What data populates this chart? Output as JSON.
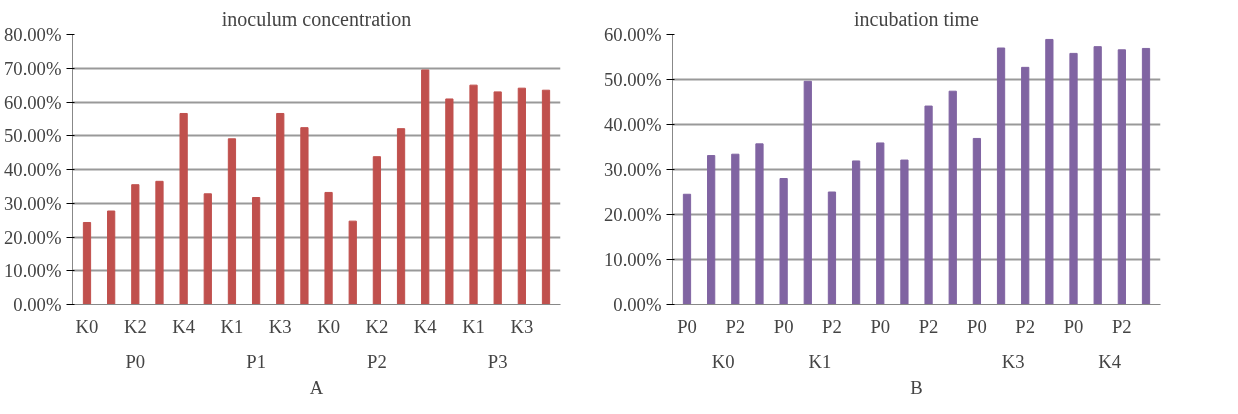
{
  "chart_data": [
    {
      "type": "bar",
      "title": "inoculum concentration",
      "categories": [
        "K0",
        null,
        "K2",
        null,
        "K4",
        null,
        "K1",
        null,
        "K3",
        null,
        "K0",
        null,
        "K2",
        null,
        "K4",
        null,
        "K1",
        null,
        "K3",
        null
      ],
      "values": [
        0.243,
        0.277,
        0.355,
        0.365,
        0.566,
        0.328,
        0.491,
        0.317,
        0.566,
        0.524,
        0.332,
        0.247,
        0.438,
        0.521,
        0.695,
        0.609,
        0.65,
        0.63,
        0.641,
        0.635
      ],
      "color": "#c0504d",
      "ylim": [
        0,
        0.8
      ],
      "yticks": [
        {
          "value": 0,
          "label": "0.00%"
        },
        {
          "value": 0.1,
          "label": "10.00%"
        },
        {
          "value": 0.2,
          "label": "20.00%"
        },
        {
          "value": 0.3,
          "label": "30.00%"
        },
        {
          "value": 0.4,
          "label": "40.00%"
        },
        {
          "value": 0.5,
          "label": "50.00%"
        },
        {
          "value": 0.6,
          "label": "60.00%"
        },
        {
          "value": 0.7,
          "label": "70.00%"
        },
        {
          "value": 0.8,
          "label": "80.00%"
        }
      ],
      "grid": "y",
      "annotations": [
        "P0",
        "P1",
        "P2",
        "P3",
        "A"
      ]
    },
    {
      "type": "bar",
      "title": "incubation time",
      "categories": [
        "P0",
        null,
        "P2",
        null,
        "P0",
        null,
        "P2",
        null,
        "P0",
        null,
        "P2",
        null,
        "P0",
        null,
        "P2",
        null,
        "P0",
        null,
        "P2",
        null
      ],
      "values": [
        0.245,
        0.331,
        0.334,
        0.357,
        0.28,
        0.496,
        0.25,
        0.319,
        0.359,
        0.321,
        0.441,
        0.474,
        0.369,
        0.57,
        0.527,
        0.589,
        0.558,
        0.573,
        0.566,
        0.569
      ],
      "color": "#8064a2",
      "ylim": [
        0,
        0.6
      ],
      "yticks": [
        {
          "value": 0,
          "label": "0.00%"
        },
        {
          "value": 0.1,
          "label": "10.00%"
        },
        {
          "value": 0.2,
          "label": "20.00%"
        },
        {
          "value": 0.3,
          "label": "30.00%"
        },
        {
          "value": 0.4,
          "label": "40.00%"
        },
        {
          "value": 0.5,
          "label": "50.00%"
        },
        {
          "value": 0.6,
          "label": "60.00%"
        }
      ],
      "grid": "y",
      "annotations": [
        "K0",
        "K1",
        null,
        "K3",
        "K4",
        "B"
      ]
    }
  ]
}
